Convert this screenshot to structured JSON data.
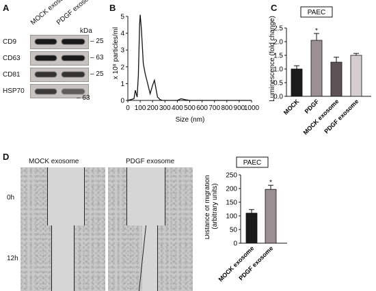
{
  "panels": {
    "A": "A",
    "B": "B",
    "C": "C",
    "D": "D"
  },
  "panel_a": {
    "lanes": [
      "MOCK exosome",
      "PDGF exosome"
    ],
    "kda_label": "kDa",
    "rows": [
      {
        "name": "CD9",
        "marker": "25"
      },
      {
        "name": "CD63",
        "marker": "63"
      },
      {
        "name": "CD81",
        "marker": "25"
      },
      {
        "name": "HSP70",
        "marker": "63"
      }
    ]
  },
  "panel_d_images": {
    "columns": [
      "MOCK exosome",
      "PDGF exosome"
    ],
    "rows": [
      "0h",
      "12h"
    ]
  },
  "colors": {
    "mock": "#1b1b1b",
    "pdgf": "#9c8f94",
    "mock_exo": "#5e5256",
    "pdgf_exo": "#d5cdcf"
  },
  "chart_data": [
    {
      "type": "line",
      "x": [
        0,
        50,
        60,
        75,
        85,
        95,
        100,
        110,
        125,
        140,
        160,
        180,
        200,
        215,
        225,
        240,
        260,
        280,
        300,
        400,
        430,
        460,
        500,
        1000
      ],
      "series": [
        {
          "values": [
            0,
            0.1,
            0.6,
            0.2,
            1.5,
            4.5,
            5.1,
            4.2,
            2.2,
            1.6,
            1.0,
            0.4,
            0.9,
            1.2,
            0.8,
            0.2,
            0.05,
            0.0,
            0.0,
            0.0,
            0.1,
            0.05,
            0.0,
            0.0
          ]
        }
      ],
      "xlabel": "Size (nm)",
      "ylabel": "x 10⁸ particles/ml",
      "xlim": [
        0,
        1000
      ],
      "ylim": [
        0,
        5
      ],
      "xticks": [
        0,
        100,
        200,
        300,
        400,
        500,
        600,
        700,
        800,
        900,
        1000
      ],
      "yticks": [
        0,
        1,
        2,
        3,
        4,
        5
      ]
    },
    {
      "type": "bar",
      "title": "PAEC",
      "categories": [
        "MOCK",
        "PDGF",
        "MOCK exosome",
        "PDGF exosome"
      ],
      "values": [
        1.0,
        2.05,
        1.25,
        1.5
      ],
      "errors": [
        0.12,
        0.25,
        0.18,
        0.07
      ],
      "significance": [
        "",
        "*",
        "",
        ""
      ],
      "ylabel": "Luminescence (fold change)",
      "ylim": [
        0,
        2.5
      ],
      "yticks": [
        0.0,
        0.5,
        1.0,
        1.5,
        2.0,
        2.5
      ],
      "ytick_labels": [
        "0.0",
        "0.5",
        "1.0",
        "1.5",
        "2.0",
        "2.5"
      ]
    },
    {
      "type": "bar",
      "title": "PAEC",
      "categories": [
        "MOCK exosome",
        "PDGF exosome"
      ],
      "values": [
        110,
        197
      ],
      "errors": [
        13,
        15
      ],
      "significance": [
        "",
        "*"
      ],
      "ylabel": "Distance of migration (arbitrary units)",
      "ylim": [
        0,
        250
      ],
      "yticks": [
        0,
        50,
        100,
        150,
        200,
        250
      ],
      "ytick_labels": [
        "0",
        "50",
        "100",
        "150",
        "200",
        "250"
      ]
    }
  ]
}
